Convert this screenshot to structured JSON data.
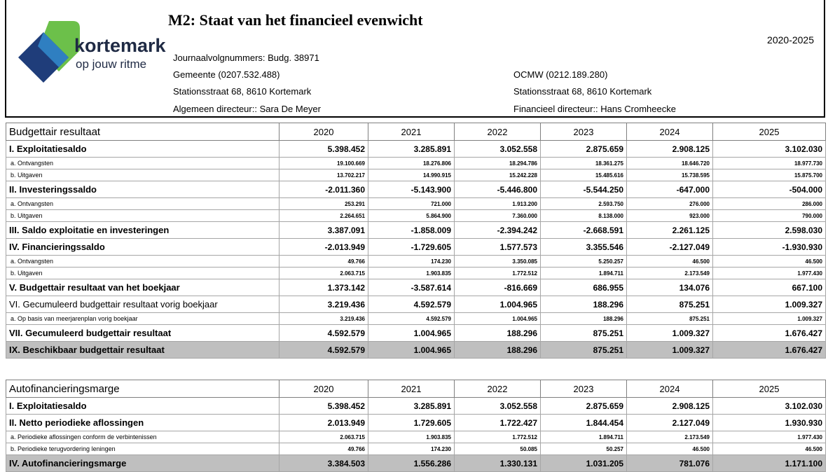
{
  "header": {
    "brand": "kortemark",
    "slogan": "op jouw ritme",
    "title": "M2: Staat van het financieel evenwicht",
    "period": "2020-2025",
    "journal": "Journaalvolgnummers: Budg. 38971",
    "left": [
      "Gemeente (0207.532.488)",
      "Stationsstraat 68, 8610 Kortemark",
      "Algemeen directeur:: Sara De Meyer"
    ],
    "right": [
      "OCMW (0212.189.280)",
      "Stationsstraat  68, 8610 Kortemark",
      "Financieel directeur:: Hans Cromheecke"
    ]
  },
  "tables": [
    {
      "title": "Budgettair resultaat",
      "years": [
        "2020",
        "2021",
        "2022",
        "2023",
        "2024",
        "2025"
      ],
      "rows": [
        {
          "label": "I. Exploitatiesaldo",
          "values": [
            "5.398.452",
            "3.285.891",
            "3.052.558",
            "2.875.659",
            "2.908.125",
            "3.102.030"
          ],
          "items": [
            {
              "label": "a. Ontvangsten",
              "values": [
                "19.100.669",
                "18.276.806",
                "18.294.786",
                "18.361.275",
                "18.646.720",
                "18.977.730"
              ]
            },
            {
              "label": "b. Uitgaven",
              "values": [
                "13.702.217",
                "14.990.915",
                "15.242.228",
                "15.485.616",
                "15.738.595",
                "15.875.700"
              ]
            }
          ]
        },
        {
          "label": "II. Investeringssaldo",
          "values": [
            "-2.011.360",
            "-5.143.900",
            "-5.446.800",
            "-5.544.250",
            "-647.000",
            "-504.000"
          ],
          "items": [
            {
              "label": "a. Ontvangsten",
              "values": [
                "253.291",
                "721.000",
                "1.913.200",
                "2.593.750",
                "276.000",
                "286.000"
              ]
            },
            {
              "label": "b. Uitgaven",
              "values": [
                "2.264.651",
                "5.864.900",
                "7.360.000",
                "8.138.000",
                "923.000",
                "790.000"
              ]
            }
          ]
        },
        {
          "label": "III. Saldo exploitatie en investeringen",
          "values": [
            "3.387.091",
            "-1.858.009",
            "-2.394.242",
            "-2.668.591",
            "2.261.125",
            "2.598.030"
          ]
        },
        {
          "label": "IV. Financieringssaldo",
          "values": [
            "-2.013.949",
            "-1.729.605",
            "1.577.573",
            "3.355.546",
            "-2.127.049",
            "-1.930.930"
          ],
          "items": [
            {
              "label": "a. Ontvangsten",
              "values": [
                "49.766",
                "174.230",
                "3.350.085",
                "5.250.257",
                "46.500",
                "46.500"
              ]
            },
            {
              "label": "b. Uitgaven",
              "values": [
                "2.063.715",
                "1.903.835",
                "1.772.512",
                "1.894.711",
                "2.173.549",
                "1.977.430"
              ]
            }
          ]
        },
        {
          "label": "V. Budgettair resultaat van het boekjaar",
          "values": [
            "1.373.142",
            "-3.587.614",
            "-816.669",
            "686.955",
            "134.076",
            "667.100"
          ]
        },
        {
          "label": "VI. Gecumuleerd budgettair resultaat vorig boekjaar",
          "values": [
            "3.219.436",
            "4.592.579",
            "1.004.965",
            "188.296",
            "875.251",
            "1.009.327"
          ],
          "items": [
            {
              "label": "a. Op basis van meerjarenplan vorig boekjaar",
              "values": [
                "3.219.436",
                "4.592.579",
                "1.004.965",
                "188.296",
                "875.251",
                "1.009.327"
              ]
            }
          ]
        },
        {
          "label": "VII. Gecumuleerd budgettair resultaat",
          "values": [
            "4.592.579",
            "1.004.965",
            "188.296",
            "875.251",
            "1.009.327",
            "1.676.427"
          ]
        },
        {
          "label": "IX. Beschikbaar budgettair resultaat",
          "values": [
            "4.592.579",
            "1.004.965",
            "188.296",
            "875.251",
            "1.009.327",
            "1.676.427"
          ]
        }
      ]
    },
    {
      "title": "Autofinancieringsmarge",
      "years": [
        "2020",
        "2021",
        "2022",
        "2023",
        "2024",
        "2025"
      ],
      "rows": [
        {
          "label": "I. Exploitatiesaldo",
          "values": [
            "5.398.452",
            "3.285.891",
            "3.052.558",
            "2.875.659",
            "2.908.125",
            "3.102.030"
          ]
        },
        {
          "label": "II. Netto periodieke aflossingen",
          "values": [
            "2.013.949",
            "1.729.605",
            "1.722.427",
            "1.844.454",
            "2.127.049",
            "1.930.930"
          ],
          "items": [
            {
              "label": "a. Periodieke aflossingen conform de verbintenissen",
              "values": [
                "2.063.715",
                "1.903.835",
                "1.772.512",
                "1.894.711",
                "2.173.549",
                "1.977.430"
              ]
            },
            {
              "label": "b. Periodieke terugvordering leningen",
              "values": [
                "49.766",
                "174.230",
                "50.085",
                "50.257",
                "46.500",
                "46.500"
              ]
            }
          ]
        },
        {
          "label": "IV. Autofinancieringsmarge",
          "values": [
            "3.384.503",
            "1.556.286",
            "1.330.131",
            "1.031.205",
            "781.076",
            "1.171.100"
          ]
        }
      ]
    }
  ]
}
